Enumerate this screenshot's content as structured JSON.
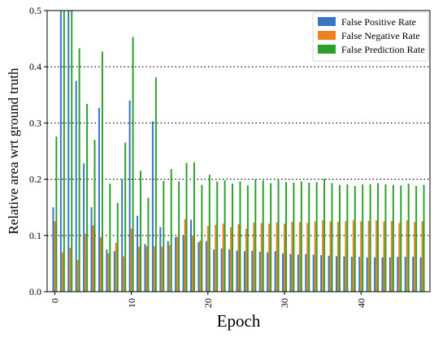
{
  "chart_data": {
    "type": "bar",
    "title": "",
    "xlabel": "Epoch",
    "ylabel": "Relative area wrt ground truth",
    "ylim": [
      0,
      0.5
    ],
    "xlim": [
      -1,
      49
    ],
    "x_ticks": [
      {
        "value": 0,
        "label": "0"
      },
      {
        "value": 10,
        "label": "10"
      },
      {
        "value": 20,
        "label": "20"
      },
      {
        "value": 30,
        "label": "30"
      },
      {
        "value": 40,
        "label": "40"
      }
    ],
    "y_ticks": [
      {
        "value": 0.0,
        "label": "0.0"
      },
      {
        "value": 0.1,
        "label": "0.1"
      },
      {
        "value": 0.2,
        "label": "0.2"
      },
      {
        "value": 0.3,
        "label": "0.3"
      },
      {
        "value": 0.4,
        "label": "0.4"
      },
      {
        "value": 0.5,
        "label": "0.5"
      }
    ],
    "grid": {
      "axis": "y",
      "style": "dotted",
      "lines": [
        0.1,
        0.2,
        0.3,
        0.4
      ]
    },
    "legend_position": "top-right",
    "epochs": [
      0,
      1,
      2,
      3,
      4,
      5,
      6,
      7,
      8,
      9,
      10,
      11,
      12,
      13,
      14,
      15,
      16,
      17,
      18,
      19,
      20,
      21,
      22,
      23,
      24,
      25,
      26,
      27,
      28,
      29,
      30,
      31,
      32,
      33,
      34,
      35,
      36,
      37,
      38,
      39,
      40,
      41,
      42,
      43,
      44,
      45,
      46,
      47,
      48
    ],
    "series": [
      {
        "name": "False Positive Rate",
        "color": "#3a75c4",
        "values": [
          0.15,
          0.5,
          0.5,
          0.375,
          0.228,
          0.15,
          0.327,
          0.075,
          0.072,
          0.2,
          0.34,
          0.135,
          0.085,
          0.303,
          0.115,
          0.09,
          0.097,
          0.1,
          0.128,
          0.088,
          0.09,
          0.075,
          0.077,
          0.075,
          0.073,
          0.072,
          0.073,
          0.071,
          0.07,
          0.072,
          0.068,
          0.067,
          0.066,
          0.067,
          0.066,
          0.065,
          0.064,
          0.063,
          0.063,
          0.062,
          0.062,
          0.061,
          0.061,
          0.061,
          0.061,
          0.062,
          0.062,
          0.062,
          0.061
        ]
      },
      {
        "name": "False Negative Rate",
        "color": "#f07f1e",
        "values": [
          0.125,
          0.07,
          0.078,
          0.056,
          0.103,
          0.118,
          0.097,
          0.068,
          0.087,
          0.063,
          0.112,
          0.08,
          0.081,
          0.081,
          0.08,
          0.083,
          0.098,
          0.129,
          0.1,
          0.091,
          0.117,
          0.119,
          0.121,
          0.115,
          0.12,
          0.112,
          0.123,
          0.122,
          0.121,
          0.123,
          0.121,
          0.124,
          0.124,
          0.122,
          0.125,
          0.127,
          0.125,
          0.124,
          0.125,
          0.127,
          0.125,
          0.126,
          0.127,
          0.125,
          0.126,
          0.122,
          0.127,
          0.124,
          0.125
        ]
      },
      {
        "name": "False Prediction Rate",
        "color": "#2ca02c",
        "values": [
          0.276,
          0.5,
          0.5,
          0.433,
          0.334,
          0.27,
          0.427,
          0.192,
          0.158,
          0.265,
          0.453,
          0.215,
          0.167,
          0.381,
          0.197,
          0.218,
          0.196,
          0.229,
          0.23,
          0.19,
          0.208,
          0.196,
          0.198,
          0.192,
          0.196,
          0.189,
          0.2,
          0.198,
          0.193,
          0.199,
          0.195,
          0.194,
          0.196,
          0.194,
          0.195,
          0.201,
          0.193,
          0.19,
          0.191,
          0.188,
          0.191,
          0.191,
          0.193,
          0.191,
          0.19,
          0.189,
          0.192,
          0.188,
          0.19
        ]
      }
    ]
  }
}
